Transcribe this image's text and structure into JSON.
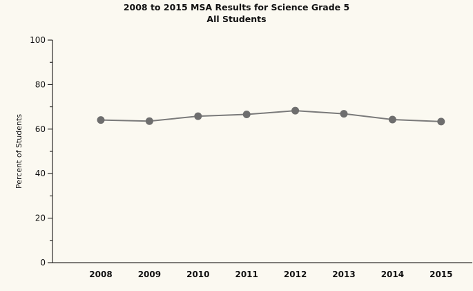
{
  "chart_data": {
    "type": "line",
    "title": "2008 to 2015 MSA Results for Science Grade 5",
    "subtitle": "All Students",
    "xlabel": "",
    "ylabel": "Percent of Students",
    "categories": [
      "2008",
      "2009",
      "2010",
      "2011",
      "2012",
      "2013",
      "2014",
      "2015"
    ],
    "series": [
      {
        "name": "All Students",
        "values": [
          64.1,
          63.6,
          65.8,
          66.6,
          68.3,
          66.9,
          64.3,
          63.4
        ]
      }
    ],
    "ylim": [
      0,
      100
    ],
    "yticks": [
      0,
      20,
      40,
      60,
      80,
      100
    ],
    "y_minor_step": 10,
    "grid": false,
    "legend": "none",
    "colors": {
      "line": "#7a7a7a",
      "marker": "#6e6e6e",
      "axis": "#000000",
      "background": "#fbf9f1"
    }
  }
}
